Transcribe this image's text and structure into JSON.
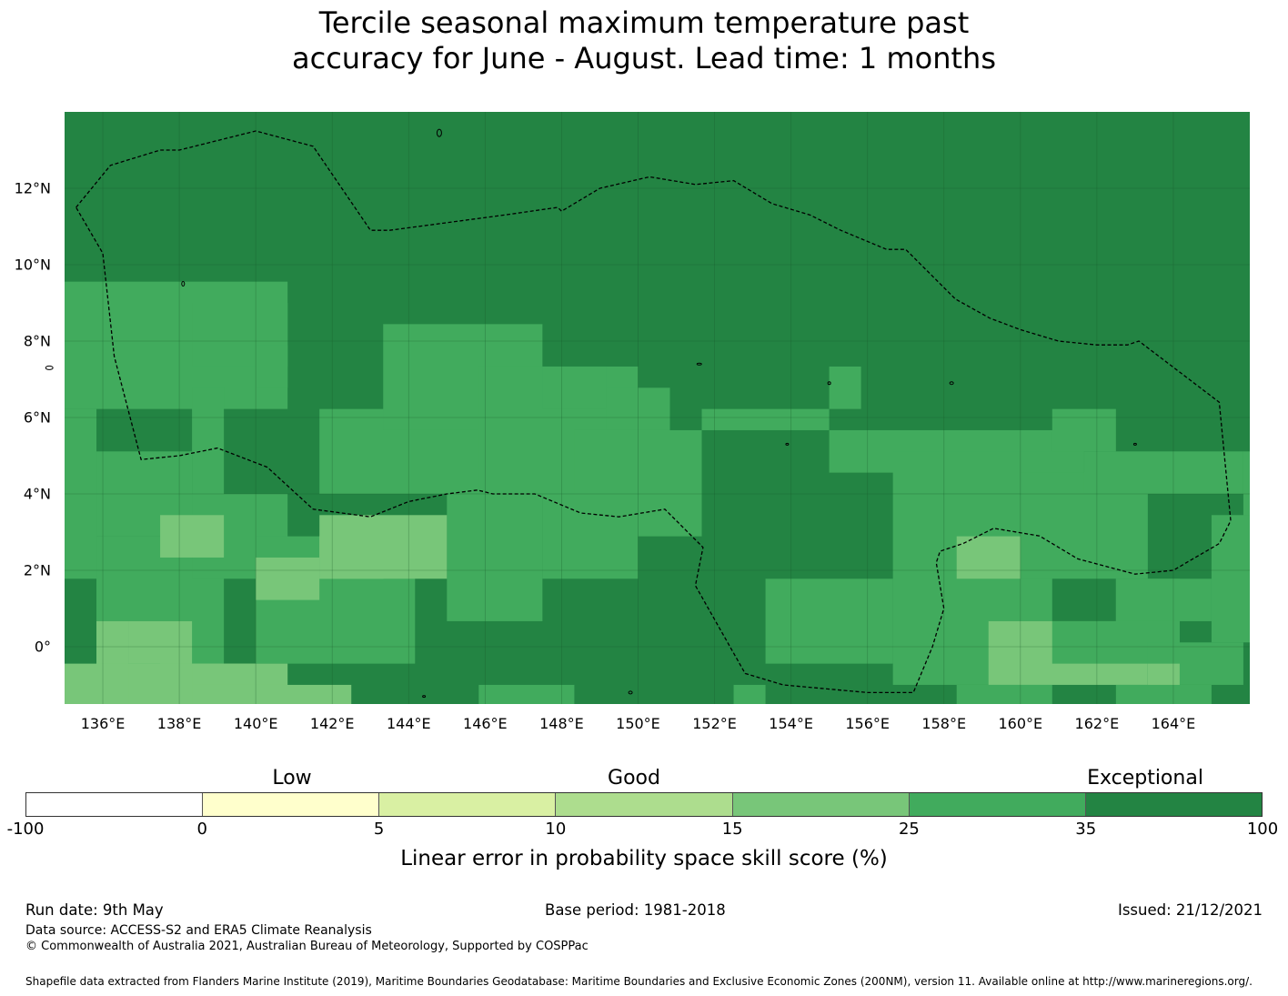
{
  "title_line1": "Tercile seasonal maximum temperature past",
  "title_line2": "accuracy for June - August. Lead time: 1 months",
  "map": {
    "lon_range": [
      135,
      166
    ],
    "lat_range": [
      -1.5,
      14
    ],
    "lon_ticks": [
      "136°E",
      "138°E",
      "140°E",
      "142°E",
      "144°E",
      "146°E",
      "148°E",
      "150°E",
      "152°E",
      "154°E",
      "156°E",
      "158°E",
      "160°E",
      "162°E",
      "164°E"
    ],
    "lat_ticks": [
      "12°N",
      "10°N",
      "8°N",
      "6°N",
      "4°N",
      "2°N",
      "0°"
    ],
    "grid": true,
    "background_category": 6,
    "boundary_style": "dashed"
  },
  "legend": {
    "category_labels": [
      "Low",
      "Good",
      "Exceptional"
    ],
    "tick_labels": [
      "-100",
      "0",
      "5",
      "10",
      "15",
      "25",
      "35",
      "100"
    ],
    "colors": [
      "#ffffff",
      "#ffffcc",
      "#d9f0a3",
      "#addd8e",
      "#78c679",
      "#41ab5d",
      "#238443"
    ],
    "axis_label": "Linear error in probability space skill score (%)"
  },
  "footer": {
    "run_date": "Run date: 9th May",
    "base_period": "Base period: 1981-2018",
    "issued": "Issued: 21/12/2021",
    "data_source": "Data source: ACCESS-S2 and ERA5 Climate Reanalysis",
    "copyright": "© Commonwealth of Australia 2021, Australian Bureau of Meteorology, Supported by COSPPac",
    "shapefile": "Shapefile data extracted from Flanders Marine Institute (2019), Maritime Boundaries Geodatabase: Maritime Boundaries and Exclusive Economic Zones (200NM), version 11. Available online at http://www.marineregions.org/."
  }
}
